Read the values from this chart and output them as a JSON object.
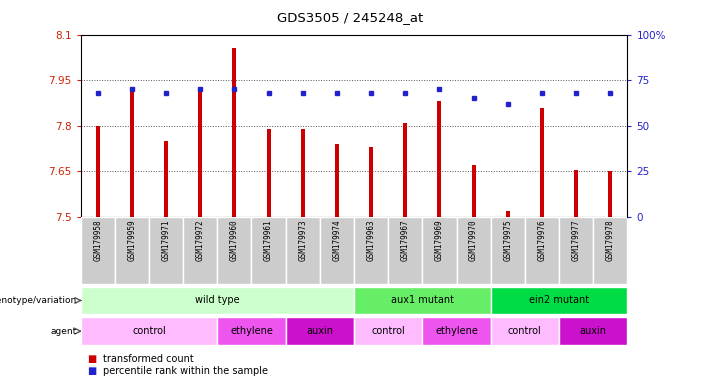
{
  "title": "GDS3505 / 245248_at",
  "samples": [
    "GSM179958",
    "GSM179959",
    "GSM179971",
    "GSM179972",
    "GSM179960",
    "GSM179961",
    "GSM179973",
    "GSM179974",
    "GSM179963",
    "GSM179967",
    "GSM179969",
    "GSM179970",
    "GSM179975",
    "GSM179976",
    "GSM179977",
    "GSM179978"
  ],
  "bar_values": [
    7.8,
    7.92,
    7.75,
    7.92,
    8.055,
    7.79,
    7.79,
    7.74,
    7.73,
    7.81,
    7.88,
    7.67,
    7.52,
    7.86,
    7.655,
    7.65
  ],
  "percentile_values": [
    68,
    70,
    68,
    70,
    70,
    68,
    68,
    68,
    68,
    68,
    70,
    65,
    62,
    68,
    68,
    68
  ],
  "ymin": 7.5,
  "ymax": 8.1,
  "yticks": [
    7.5,
    7.65,
    7.8,
    7.95,
    8.1
  ],
  "ytick_labels": [
    "7.5",
    "7.65",
    "7.8",
    "7.95",
    "8.1"
  ],
  "right_yticks": [
    0,
    25,
    50,
    75,
    100
  ],
  "right_ytick_labels": [
    "0",
    "25",
    "50",
    "75",
    "100%"
  ],
  "bar_color": "#cc0000",
  "percentile_color": "#2222cc",
  "bar_base": 7.5,
  "bar_width": 0.12,
  "genotype_groups": [
    {
      "label": "wild type",
      "start": 0,
      "end": 8,
      "color": "#ccffcc"
    },
    {
      "label": "aux1 mutant",
      "start": 8,
      "end": 12,
      "color": "#66ee66"
    },
    {
      "label": "ein2 mutant",
      "start": 12,
      "end": 16,
      "color": "#00dd44"
    }
  ],
  "agent_groups": [
    {
      "label": "control",
      "start": 0,
      "end": 4,
      "color": "#ffbbff"
    },
    {
      "label": "ethylene",
      "start": 4,
      "end": 6,
      "color": "#ee55ee"
    },
    {
      "label": "auxin",
      "start": 6,
      "end": 8,
      "color": "#cc11cc"
    },
    {
      "label": "control",
      "start": 8,
      "end": 10,
      "color": "#ffbbff"
    },
    {
      "label": "ethylene",
      "start": 10,
      "end": 12,
      "color": "#ee55ee"
    },
    {
      "label": "control",
      "start": 12,
      "end": 14,
      "color": "#ffbbff"
    },
    {
      "label": "auxin",
      "start": 14,
      "end": 16,
      "color": "#cc11cc"
    }
  ],
  "grid_color": "#555555",
  "bg_color": "#ffffff",
  "axis_label_color_left": "#cc2200",
  "axis_label_color_right": "#2222cc",
  "sample_bg_color": "#cccccc",
  "sample_border_color": "#999999"
}
